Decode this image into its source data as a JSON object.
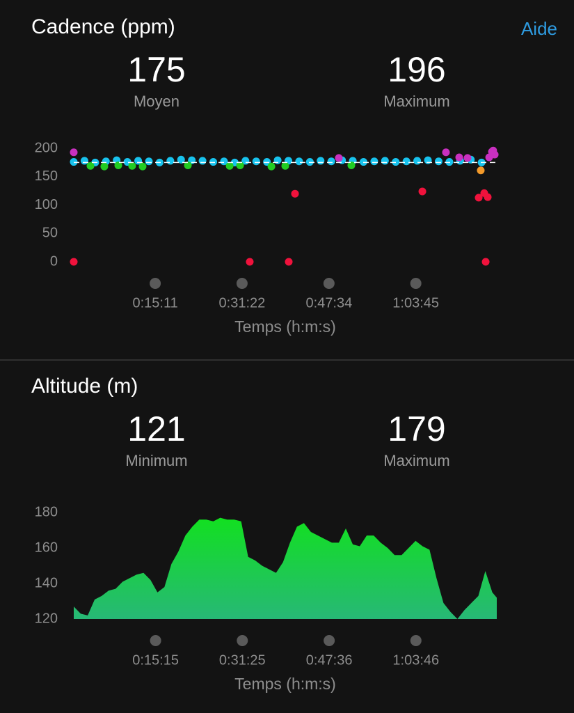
{
  "help_link": "Aide",
  "chart_data": [
    {
      "type": "scatter",
      "title": "Cadence (ppm)",
      "stats": [
        {
          "value": 175,
          "label": "Moyen"
        },
        {
          "value": 196,
          "label": "Maximum"
        }
      ],
      "xlabel": "Temps (h:m:s)",
      "xlim": [
        0,
        4730
      ],
      "xticks": [
        {
          "value": 911,
          "label": "0:15:11"
        },
        {
          "value": 1882,
          "label": "0:31:22"
        },
        {
          "value": 2854,
          "label": "0:47:34"
        },
        {
          "value": 3825,
          "label": "1:03:45"
        }
      ],
      "ylim": [
        0,
        200
      ],
      "yticks": [
        0,
        50,
        100,
        150,
        200
      ],
      "series": [
        {
          "color": "#18c3ee",
          "x": [
            0,
            120,
            240,
            360,
            480,
            600,
            720,
            840,
            960,
            1080,
            1200,
            1320,
            1440,
            1560,
            1680,
            1800,
            1920,
            2040,
            2160,
            2280,
            2400,
            2520,
            2640,
            2760,
            2880,
            3000,
            3120,
            3240,
            3360,
            3480,
            3600,
            3720,
            3840,
            3960,
            4080,
            4200,
            4320,
            4440,
            4560
          ],
          "values": [
            176,
            178,
            175,
            177,
            179,
            176,
            178,
            177,
            175,
            178,
            180,
            179,
            178,
            176,
            177,
            175,
            178,
            177,
            176,
            179,
            178,
            177,
            176,
            178,
            177,
            179,
            178,
            176,
            177,
            178,
            176,
            177,
            178,
            179,
            177,
            176,
            178,
            180,
            175
          ]
        },
        {
          "color": "#22cc22",
          "x": [
            187,
            342,
            498,
            653,
            770,
            1276,
            1743,
            1860,
            2210,
            2365,
            3104
          ],
          "values": [
            169,
            168,
            170,
            169,
            168,
            170,
            169,
            170,
            168,
            169,
            170
          ]
        },
        {
          "color": "#c930c0",
          "x": [
            0,
            2964,
            4162,
            4310,
            4403,
            4645,
            4676,
            4707,
            4690
          ],
          "values": [
            193,
            183,
            193,
            184,
            183,
            184,
            194,
            189,
            196
          ]
        },
        {
          "color": "#f39a2a",
          "x": [
            4551
          ],
          "values": [
            161
          ]
        },
        {
          "color": "#f0123c",
          "x": [
            0,
            1968,
            2404,
            2474,
            3898,
            4528,
            4590,
            4629,
            4606
          ],
          "values": [
            0,
            0,
            0,
            120,
            124,
            113,
            121,
            114,
            0
          ]
        }
      ]
    },
    {
      "type": "area",
      "title": "Altitude (m)",
      "stats": [
        {
          "value": 121,
          "label": "Minimum"
        },
        {
          "value": 179,
          "label": "Maximum"
        }
      ],
      "xlabel": "Temps (h:m:s)",
      "xlim": [
        0,
        4730
      ],
      "xticks": [
        {
          "value": 915,
          "label": "0:15:15"
        },
        {
          "value": 1885,
          "label": "0:31:25"
        },
        {
          "value": 2856,
          "label": "0:47:36"
        },
        {
          "value": 3826,
          "label": "1:03:46"
        }
      ],
      "ylim": [
        120,
        180
      ],
      "yticks": [
        120,
        140,
        160,
        180
      ],
      "series": [
        {
          "color": "#12e020",
          "x": [
            0,
            78,
            156,
            234,
            312,
            390,
            468,
            546,
            624,
            702,
            780,
            858,
            936,
            1014,
            1092,
            1170,
            1248,
            1326,
            1404,
            1482,
            1560,
            1638,
            1716,
            1794,
            1872,
            1950,
            2028,
            2106,
            2184,
            2262,
            2340,
            2418,
            2496,
            2574,
            2652,
            2730,
            2808,
            2886,
            2964,
            3042,
            3120,
            3198,
            3276,
            3354,
            3432,
            3510,
            3588,
            3666,
            3744,
            3822,
            3900,
            3978,
            4056,
            4134,
            4212,
            4290,
            4368,
            4446,
            4524,
            4602,
            4680,
            4730
          ],
          "values": [
            127,
            123,
            122,
            131,
            133,
            136,
            137,
            141,
            143,
            145,
            146,
            142,
            135,
            138,
            151,
            158,
            167,
            172,
            176,
            176,
            175,
            177,
            176,
            176,
            175,
            155,
            153,
            150,
            148,
            146,
            152,
            163,
            172,
            174,
            169,
            167,
            165,
            163,
            163,
            171,
            162,
            161,
            167,
            167,
            163,
            160,
            156,
            156,
            160,
            164,
            161,
            159,
            143,
            129,
            124,
            120,
            125,
            129,
            133,
            147,
            135,
            132
          ]
        }
      ]
    }
  ]
}
